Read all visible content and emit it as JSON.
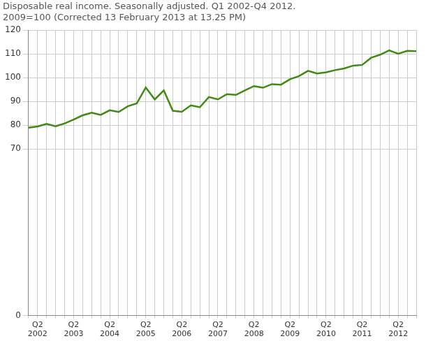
{
  "chart_data": {
    "type": "line",
    "title": [
      "Disposable real income. Seasonally adjusted. Q1 2002-Q4 2012.",
      "2009=100 (Corrected 13 February 2013 at 13.25 PM)"
    ],
    "categories": [
      null,
      "Q2 2002",
      null,
      null,
      null,
      "Q2 2003",
      null,
      null,
      null,
      "Q2 2004",
      null,
      null,
      null,
      "Q2 2005",
      null,
      null,
      null,
      "Q2 2006",
      null,
      null,
      null,
      "Q2 2007",
      null,
      null,
      null,
      "Q2 2008",
      null,
      null,
      null,
      "Q2 2009",
      null,
      null,
      null,
      "Q2 2010",
      null,
      null,
      null,
      "Q2 2011",
      null,
      null,
      null,
      "Q2 2012",
      null,
      null
    ],
    "values": [
      79.0,
      79.5,
      80.6,
      79.6,
      80.8,
      82.4,
      84.2,
      85.3,
      84.4,
      86.3,
      85.6,
      88.0,
      89.2,
      95.9,
      90.9,
      94.7,
      86.1,
      85.7,
      88.4,
      87.6,
      91.9,
      90.9,
      93.1,
      92.8,
      94.7,
      96.5,
      95.8,
      97.3,
      97.1,
      99.4,
      100.7,
      102.9,
      101.8,
      102.3,
      103.2,
      103.9,
      105.1,
      105.4,
      108.4,
      109.7,
      111.5,
      110.1,
      111.3,
      111.2
    ],
    "color": "#3f8a12",
    "ylim": [
      0,
      120
    ],
    "yticks": [
      0,
      70,
      80,
      90,
      100,
      110,
      120
    ],
    "grid": true
  }
}
